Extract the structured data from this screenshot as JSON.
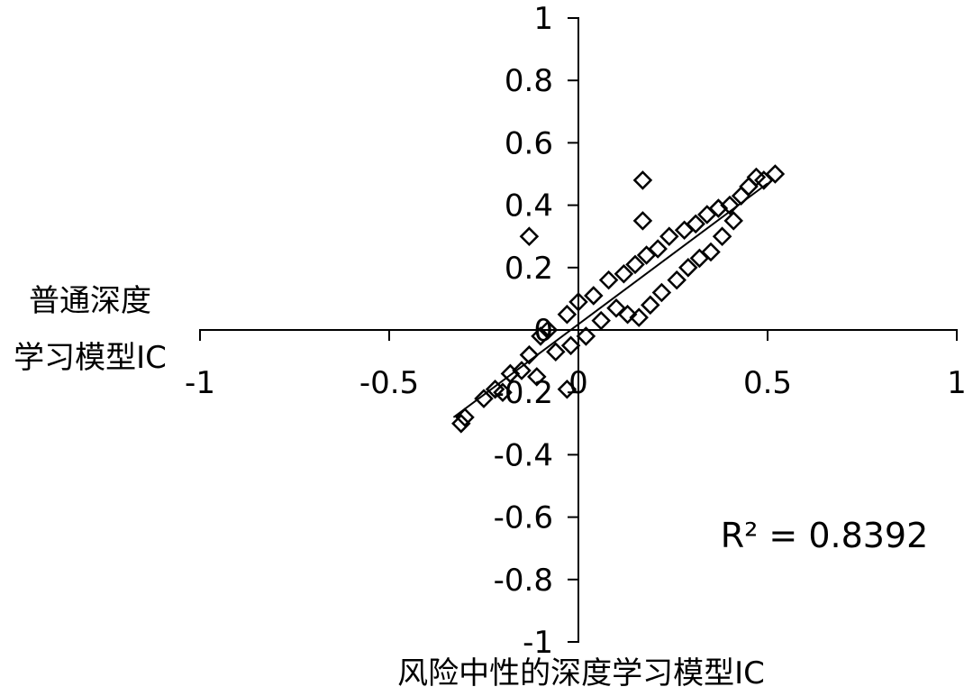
{
  "chart_data": {
    "type": "scatter",
    "xlabel": "风险中性的深度学习模型IC",
    "ylabel_lines": [
      "普通深度",
      "学习模型IC"
    ],
    "xlim": [
      -1,
      1
    ],
    "ylim": [
      -1,
      1
    ],
    "x_ticks": [
      -1,
      -0.5,
      0,
      0.5,
      1
    ],
    "x_tick_labels": [
      "-1",
      "-0.5",
      "0",
      "0.5",
      "1"
    ],
    "y_ticks": [
      1,
      0.8,
      0.6,
      0.4,
      0.2,
      0,
      -0.2,
      -0.4,
      -0.6,
      -0.8,
      -1
    ],
    "y_tick_labels": [
      "1",
      "0.8",
      "0.6",
      "0.4",
      "0.2",
      "0",
      "-0.2",
      "-0.4",
      "-0.6",
      "-0.8",
      "-1"
    ],
    "points": [
      {
        "x": -0.31,
        "y": -0.3
      },
      {
        "x": -0.3,
        "y": -0.28
      },
      {
        "x": -0.25,
        "y": -0.22
      },
      {
        "x": -0.22,
        "y": -0.19
      },
      {
        "x": -0.2,
        "y": -0.2
      },
      {
        "x": -0.18,
        "y": -0.14
      },
      {
        "x": -0.15,
        "y": -0.13
      },
      {
        "x": -0.13,
        "y": -0.08
      },
      {
        "x": -0.11,
        "y": -0.15
      },
      {
        "x": -0.1,
        "y": -0.02
      },
      {
        "x": -0.08,
        "y": 0.0
      },
      {
        "x": -0.06,
        "y": -0.07
      },
      {
        "x": -0.03,
        "y": 0.05
      },
      {
        "x": -0.02,
        "y": -0.05
      },
      {
        "x": 0.0,
        "y": 0.09
      },
      {
        "x": 0.02,
        "y": -0.02
      },
      {
        "x": 0.04,
        "y": 0.11
      },
      {
        "x": 0.06,
        "y": 0.03
      },
      {
        "x": 0.08,
        "y": 0.16
      },
      {
        "x": 0.1,
        "y": 0.07
      },
      {
        "x": 0.12,
        "y": 0.18
      },
      {
        "x": 0.13,
        "y": 0.05
      },
      {
        "x": 0.15,
        "y": 0.21
      },
      {
        "x": 0.16,
        "y": 0.04
      },
      {
        "x": 0.18,
        "y": 0.24
      },
      {
        "x": 0.19,
        "y": 0.08
      },
      {
        "x": 0.21,
        "y": 0.26
      },
      {
        "x": 0.22,
        "y": 0.12
      },
      {
        "x": 0.24,
        "y": 0.3
      },
      {
        "x": 0.26,
        "y": 0.16
      },
      {
        "x": 0.28,
        "y": 0.32
      },
      {
        "x": 0.29,
        "y": 0.2
      },
      {
        "x": 0.31,
        "y": 0.34
      },
      {
        "x": 0.32,
        "y": 0.23
      },
      {
        "x": 0.34,
        "y": 0.37
      },
      {
        "x": 0.35,
        "y": 0.25
      },
      {
        "x": 0.37,
        "y": 0.39
      },
      {
        "x": 0.38,
        "y": 0.3
      },
      {
        "x": 0.4,
        "y": 0.4
      },
      {
        "x": 0.41,
        "y": 0.35
      },
      {
        "x": 0.43,
        "y": 0.43
      },
      {
        "x": 0.45,
        "y": 0.46
      },
      {
        "x": 0.47,
        "y": 0.49
      },
      {
        "x": 0.49,
        "y": 0.48
      },
      {
        "x": 0.52,
        "y": 0.5
      },
      {
        "x": -0.13,
        "y": 0.3
      },
      {
        "x": 0.17,
        "y": 0.48
      },
      {
        "x": 0.17,
        "y": 0.35
      },
      {
        "x": -0.03,
        "y": -0.19
      }
    ],
    "trendline": {
      "x": [
        -0.33,
        0.5
      ],
      "y": [
        -0.28,
        0.47
      ]
    },
    "r_squared_label": "R² = 0.8392",
    "grid": false,
    "legend": "none"
  }
}
